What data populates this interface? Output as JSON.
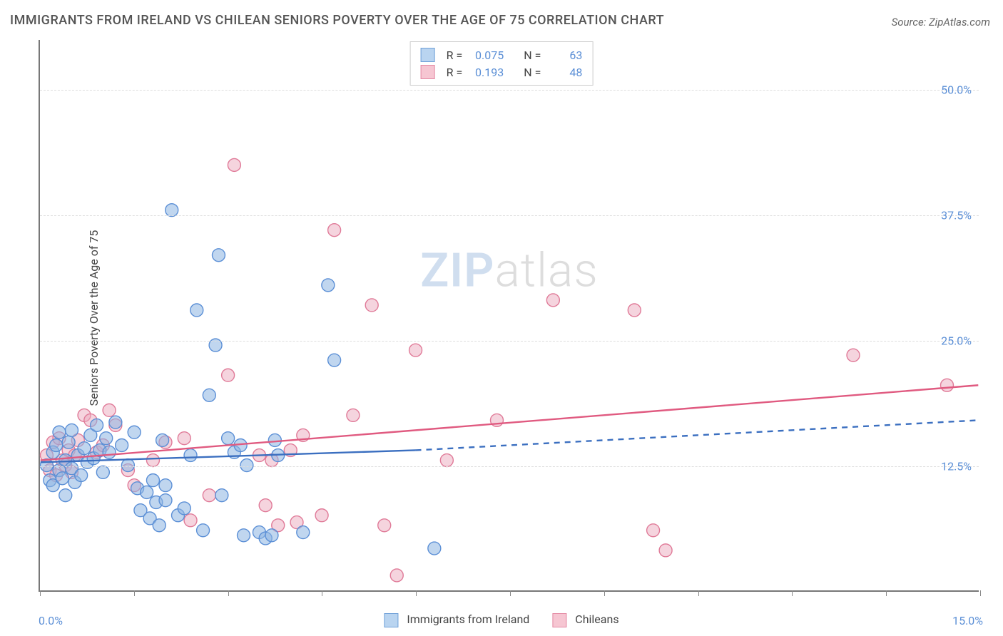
{
  "title": "IMMIGRANTS FROM IRELAND VS CHILEAN SENIORS POVERTY OVER THE AGE OF 75 CORRELATION CHART",
  "source": "Source: ZipAtlas.com",
  "y_axis_label": "Seniors Poverty Over the Age of 75",
  "watermark": {
    "part1": "ZIP",
    "part2": "atlas"
  },
  "chart": {
    "type": "scatter",
    "background_color": "#ffffff",
    "grid_color": "#dddddd",
    "axis_color": "#777777",
    "tick_label_color": "#5b8fd6",
    "text_color": "#444444",
    "xlim": [
      0.0,
      15.0
    ],
    "ylim": [
      0.0,
      55.0
    ],
    "x_ticks": [
      0,
      1.5,
      3.0,
      4.5,
      6.0,
      7.5,
      9.0,
      10.5,
      12.0,
      13.5,
      15.0
    ],
    "x_tick_labels": {
      "left": "0.0%",
      "right": "15.0%"
    },
    "y_gridlines": [
      12.5,
      25.0,
      37.5,
      50.0
    ],
    "y_tick_labels": [
      "12.5%",
      "25.0%",
      "37.5%",
      "50.0%"
    ],
    "marker_radius": 9,
    "marker_stroke_width": 1.4,
    "trend_line_width": 2.4
  },
  "top_legend": {
    "rows": [
      {
        "R_label": "R =",
        "R_value": "0.075",
        "N_label": "N =",
        "N_value": "63"
      },
      {
        "R_label": "R =",
        "R_value": "0.193",
        "N_label": "N =",
        "N_value": "48"
      }
    ]
  },
  "bottom_legend": {
    "items": [
      {
        "label": "Immigrants from Ireland",
        "fill": "#b9d4f0",
        "stroke": "#6fa0d8"
      },
      {
        "label": "Chileans",
        "fill": "#f6c6d2",
        "stroke": "#e48aa4"
      }
    ]
  },
  "series": {
    "ireland": {
      "fill": "rgba(140,180,225,0.55)",
      "stroke": "#5b8fd6",
      "trend": {
        "solid": {
          "x1": 0,
          "y1": 12.8,
          "x2": 6.0,
          "y2": 14.0
        },
        "dashed": {
          "x1": 6.0,
          "y1": 14.0,
          "x2": 15.0,
          "y2": 17.0
        },
        "color": "#3b6fc0"
      },
      "points": [
        [
          0.1,
          12.5
        ],
        [
          0.15,
          11.0
        ],
        [
          0.2,
          13.8
        ],
        [
          0.2,
          10.5
        ],
        [
          0.25,
          14.5
        ],
        [
          0.3,
          12.0
        ],
        [
          0.3,
          15.8
        ],
        [
          0.35,
          11.2
        ],
        [
          0.4,
          13.0
        ],
        [
          0.4,
          9.5
        ],
        [
          0.45,
          14.8
        ],
        [
          0.5,
          12.2
        ],
        [
          0.5,
          16.0
        ],
        [
          0.55,
          10.8
        ],
        [
          0.6,
          13.5
        ],
        [
          0.65,
          11.5
        ],
        [
          0.7,
          14.2
        ],
        [
          0.75,
          12.8
        ],
        [
          0.8,
          15.5
        ],
        [
          0.85,
          13.2
        ],
        [
          0.9,
          16.5
        ],
        [
          0.95,
          14.0
        ],
        [
          1.0,
          11.8
        ],
        [
          1.05,
          15.2
        ],
        [
          1.1,
          13.8
        ],
        [
          1.2,
          16.8
        ],
        [
          1.3,
          14.5
        ],
        [
          1.4,
          12.5
        ],
        [
          1.5,
          15.8
        ],
        [
          1.55,
          10.2
        ],
        [
          1.6,
          8.0
        ],
        [
          1.7,
          9.8
        ],
        [
          1.75,
          7.2
        ],
        [
          1.8,
          11.0
        ],
        [
          1.85,
          8.8
        ],
        [
          1.9,
          6.5
        ],
        [
          1.95,
          15.0
        ],
        [
          2.0,
          10.5
        ],
        [
          2.0,
          9.0
        ],
        [
          2.1,
          38.0
        ],
        [
          2.2,
          7.5
        ],
        [
          2.3,
          8.2
        ],
        [
          2.4,
          13.5
        ],
        [
          2.5,
          28.0
        ],
        [
          2.6,
          6.0
        ],
        [
          2.7,
          19.5
        ],
        [
          2.8,
          24.5
        ],
        [
          2.85,
          33.5
        ],
        [
          2.9,
          9.5
        ],
        [
          3.0,
          15.2
        ],
        [
          3.1,
          13.8
        ],
        [
          3.2,
          14.5
        ],
        [
          3.25,
          5.5
        ],
        [
          3.3,
          12.5
        ],
        [
          3.5,
          5.8
        ],
        [
          3.6,
          5.2
        ],
        [
          3.7,
          5.5
        ],
        [
          3.75,
          15.0
        ],
        [
          3.8,
          13.5
        ],
        [
          4.2,
          5.8
        ],
        [
          4.6,
          30.5
        ],
        [
          4.7,
          23.0
        ],
        [
          6.3,
          4.2
        ]
      ]
    },
    "chilean": {
      "fill": "rgba(235,170,190,0.50)",
      "stroke": "#e07a98",
      "trend": {
        "solid": {
          "x1": 0,
          "y1": 13.0,
          "x2": 15.0,
          "y2": 20.5
        },
        "dashed": null,
        "color": "#e05a80"
      },
      "points": [
        [
          0.1,
          13.5
        ],
        [
          0.15,
          12.0
        ],
        [
          0.2,
          14.8
        ],
        [
          0.25,
          11.5
        ],
        [
          0.3,
          15.2
        ],
        [
          0.35,
          13.0
        ],
        [
          0.4,
          12.5
        ],
        [
          0.45,
          14.0
        ],
        [
          0.5,
          11.8
        ],
        [
          0.55,
          13.5
        ],
        [
          0.6,
          15.0
        ],
        [
          0.7,
          17.5
        ],
        [
          0.8,
          17.0
        ],
        [
          0.9,
          13.8
        ],
        [
          1.0,
          14.5
        ],
        [
          1.1,
          18.0
        ],
        [
          1.2,
          16.5
        ],
        [
          1.4,
          12.0
        ],
        [
          1.5,
          10.5
        ],
        [
          1.8,
          13.0
        ],
        [
          2.0,
          14.8
        ],
        [
          2.3,
          15.2
        ],
        [
          2.4,
          7.0
        ],
        [
          2.7,
          9.5
        ],
        [
          3.0,
          21.5
        ],
        [
          3.1,
          42.5
        ],
        [
          3.5,
          13.5
        ],
        [
          3.6,
          8.5
        ],
        [
          3.7,
          13.0
        ],
        [
          3.8,
          6.5
        ],
        [
          4.0,
          14.0
        ],
        [
          4.1,
          6.8
        ],
        [
          4.2,
          15.5
        ],
        [
          4.5,
          7.5
        ],
        [
          4.7,
          36.0
        ],
        [
          5.0,
          17.5
        ],
        [
          5.3,
          28.5
        ],
        [
          5.5,
          6.5
        ],
        [
          5.7,
          1.5
        ],
        [
          6.0,
          24.0
        ],
        [
          6.5,
          13.0
        ],
        [
          7.3,
          17.0
        ],
        [
          8.2,
          29.0
        ],
        [
          9.5,
          28.0
        ],
        [
          9.8,
          6.0
        ],
        [
          10.0,
          4.0
        ],
        [
          13.0,
          23.5
        ],
        [
          14.5,
          20.5
        ]
      ]
    }
  }
}
